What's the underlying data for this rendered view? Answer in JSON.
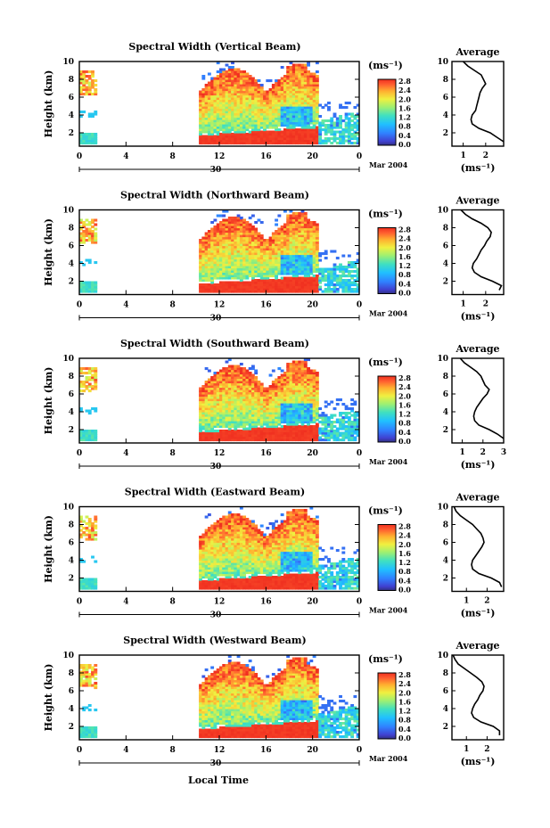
{
  "figure": {
    "xlabel": "Local Time",
    "date_label": "30",
    "month_label": "Mar 2004",
    "ylabel": "Height (km)",
    "cbar_unit": "(ms⁻¹)",
    "avg_title": "Average",
    "avg_xunit": "(ms⁻¹)"
  },
  "chart_data": [
    {
      "type": "heatmap",
      "title": "Spectral Width (Vertical Beam)",
      "xlabel": "Local Time",
      "ylabel": "Height (km)",
      "x_ticks": [
        "0",
        "4",
        "8",
        "12",
        "16",
        "20",
        "0"
      ],
      "y_ticks": [
        "2",
        "4",
        "6",
        "8",
        "10"
      ],
      "xlim": [
        0,
        24
      ],
      "ylim": [
        0.5,
        10
      ],
      "colorbar_ticks": [
        "0.0",
        "0.4",
        "0.8",
        "1.2",
        "1.6",
        "2.0",
        "2.4",
        "2.8"
      ],
      "colorbar_range": [
        0,
        2.8
      ],
      "average_profile": {
        "x_ticks": [
          "1",
          "2"
        ],
        "xlim": [
          0.5,
          2.8
        ],
        "height": [
          1.0,
          1.5,
          2.0,
          2.5,
          3.0,
          3.5,
          4.0,
          4.5,
          5.0,
          5.5,
          6.0,
          6.5,
          7.0,
          7.5,
          8.0,
          8.5,
          9.0,
          9.5,
          10.0
        ],
        "value": [
          2.8,
          2.5,
          2.2,
          1.7,
          1.4,
          1.35,
          1.4,
          1.55,
          1.6,
          1.65,
          1.7,
          1.75,
          1.85,
          2.0,
          1.9,
          1.8,
          1.5,
          1.2,
          1.0
        ]
      }
    },
    {
      "type": "heatmap",
      "title": "Spectral Width (Northward Beam)",
      "xlabel": "Local Time",
      "ylabel": "Height (km)",
      "x_ticks": [
        "0",
        "4",
        "8",
        "12",
        "16",
        "20",
        "0"
      ],
      "y_ticks": [
        "2",
        "4",
        "6",
        "8",
        "10"
      ],
      "xlim": [
        0,
        24
      ],
      "ylim": [
        0.5,
        10
      ],
      "colorbar_ticks": [
        "0.0",
        "0.4",
        "0.8",
        "1.2",
        "1.6",
        "2.0",
        "2.4",
        "2.8"
      ],
      "colorbar_range": [
        0,
        2.8
      ],
      "average_profile": {
        "x_ticks": [
          "1",
          "2"
        ],
        "xlim": [
          0.5,
          2.8
        ],
        "height": [
          1.0,
          1.5,
          2.0,
          2.5,
          3.0,
          3.5,
          4.0,
          4.5,
          5.0,
          5.5,
          6.0,
          6.5,
          7.0,
          7.5,
          8.0,
          8.5,
          9.0,
          9.5,
          10.0
        ],
        "value": [
          2.6,
          2.7,
          2.3,
          1.8,
          1.5,
          1.4,
          1.45,
          1.6,
          1.7,
          1.8,
          1.95,
          2.05,
          2.2,
          2.25,
          2.1,
          1.8,
          1.4,
          1.1,
          0.9
        ]
      }
    },
    {
      "type": "heatmap",
      "title": "Spectral Width (Southward Beam)",
      "xlabel": "Local Time",
      "ylabel": "Height (km)",
      "x_ticks": [
        "0",
        "4",
        "8",
        "12",
        "16",
        "20",
        "0"
      ],
      "y_ticks": [
        "2",
        "4",
        "6",
        "8",
        "10"
      ],
      "xlim": [
        0,
        24
      ],
      "ylim": [
        0.5,
        10
      ],
      "colorbar_ticks": [
        "0.0",
        "0.4",
        "0.8",
        "1.2",
        "1.6",
        "2.0",
        "2.4",
        "2.8"
      ],
      "colorbar_range": [
        0,
        2.8
      ],
      "average_profile": {
        "x_ticks": [
          "1",
          "2",
          "3"
        ],
        "xlim": [
          0.5,
          3.0
        ],
        "height": [
          1.0,
          1.5,
          2.0,
          2.5,
          3.0,
          3.5,
          4.0,
          4.5,
          5.0,
          5.5,
          6.0,
          6.5,
          7.0,
          7.5,
          8.0,
          8.5,
          9.0,
          9.5,
          10.0
        ],
        "value": [
          3.0,
          2.7,
          2.3,
          1.8,
          1.6,
          1.55,
          1.6,
          1.7,
          1.85,
          2.0,
          2.2,
          2.3,
          2.1,
          2.0,
          1.9,
          1.7,
          1.4,
          1.1,
          0.9
        ]
      }
    },
    {
      "type": "heatmap",
      "title": "Spectral Width (Eastward Beam)",
      "xlabel": "Local Time",
      "ylabel": "Height (km)",
      "x_ticks": [
        "0",
        "4",
        "8",
        "12",
        "16",
        "20",
        "0"
      ],
      "y_ticks": [
        "2",
        "4",
        "6",
        "8",
        "10"
      ],
      "xlim": [
        0,
        24
      ],
      "ylim": [
        0.5,
        10
      ],
      "colorbar_ticks": [
        "0.0",
        "0.4",
        "0.8",
        "1.2",
        "1.6",
        "2.0",
        "2.4",
        "2.8"
      ],
      "colorbar_range": [
        0,
        2.8
      ],
      "average_profile": {
        "x_ticks": [
          "1",
          "2"
        ],
        "xlim": [
          0.3,
          2.8
        ],
        "height": [
          1.0,
          1.5,
          2.0,
          2.5,
          3.0,
          3.5,
          4.0,
          4.5,
          5.0,
          5.5,
          6.0,
          6.5,
          7.0,
          7.5,
          8.0,
          8.5,
          9.0,
          9.5,
          10.0
        ],
        "value": [
          2.7,
          2.6,
          2.2,
          1.6,
          1.3,
          1.25,
          1.3,
          1.45,
          1.6,
          1.75,
          1.85,
          1.8,
          1.7,
          1.5,
          1.3,
          1.0,
          0.7,
          0.5,
          0.4
        ]
      }
    },
    {
      "type": "heatmap",
      "title": "Spectral Width (Westward Beam)",
      "xlabel": "Local Time",
      "ylabel": "Height (km)",
      "x_ticks": [
        "0",
        "4",
        "8",
        "12",
        "16",
        "20",
        "0"
      ],
      "y_ticks": [
        "2",
        "4",
        "6",
        "8",
        "10"
      ],
      "xlim": [
        0,
        24
      ],
      "ylim": [
        0.5,
        10
      ],
      "colorbar_ticks": [
        "0.0",
        "0.4",
        "0.8",
        "1.2",
        "1.6",
        "2.0",
        "2.4",
        "2.8"
      ],
      "colorbar_range": [
        0,
        2.8
      ],
      "average_profile": {
        "x_ticks": [
          "1",
          "2"
        ],
        "xlim": [
          0.3,
          2.8
        ],
        "height": [
          1.0,
          1.5,
          2.0,
          2.5,
          3.0,
          3.5,
          4.0,
          4.5,
          5.0,
          5.5,
          6.0,
          6.5,
          7.0,
          7.5,
          8.0,
          8.5,
          9.0,
          9.5,
          10.0
        ],
        "value": [
          2.6,
          2.6,
          2.3,
          1.7,
          1.35,
          1.25,
          1.3,
          1.4,
          1.55,
          1.65,
          1.8,
          1.85,
          1.75,
          1.5,
          1.2,
          0.9,
          0.6,
          0.45,
          0.35
        ]
      }
    }
  ]
}
